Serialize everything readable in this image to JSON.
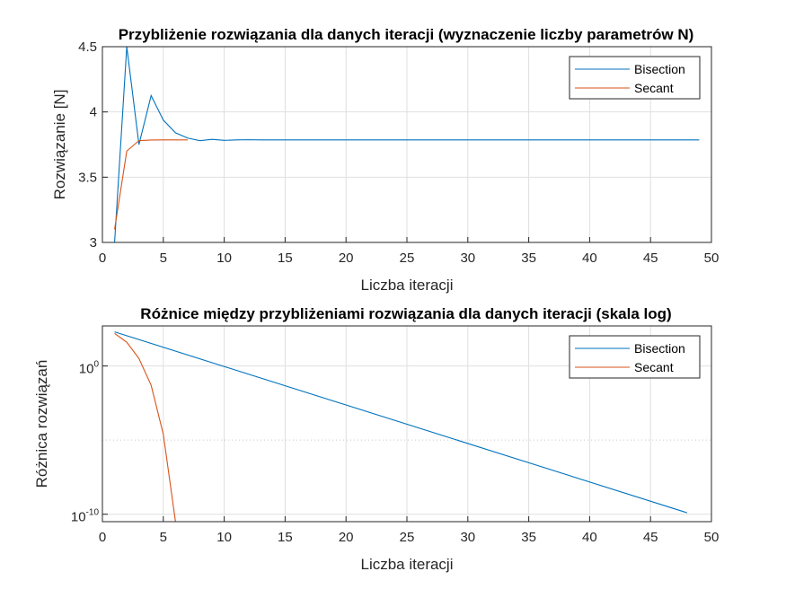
{
  "colors": {
    "bisection": "#0072BD",
    "secant": "#D95319",
    "grid": "#DFDFDF",
    "axis": "#262626"
  },
  "chart_data": [
    {
      "type": "line",
      "title": "Przybliżenie rozwiązania dla danych iteracji (wyznaczenie liczby parametrów N)",
      "xlabel": "Liczba iteracji",
      "ylabel": "Rozwiązanie [N]",
      "xlim": [
        0,
        50
      ],
      "ylim": [
        3,
        4.5
      ],
      "xticks": [
        "0",
        "5",
        "10",
        "15",
        "20",
        "25",
        "30",
        "35",
        "40",
        "45",
        "50"
      ],
      "yticks": [
        "3",
        "3.5",
        "4",
        "4.5"
      ],
      "grid": true,
      "legend_position": "top-right",
      "series": [
        {
          "name": "Bisection",
          "x": [
            1,
            2,
            3,
            4,
            5,
            6,
            7,
            8,
            9,
            10,
            11,
            12,
            13,
            14,
            15,
            16,
            17,
            18,
            19,
            20,
            21,
            22,
            23,
            24,
            25,
            26,
            27,
            28,
            29,
            30,
            31,
            32,
            33,
            34,
            35,
            36,
            37,
            38,
            39,
            40,
            41,
            42,
            43,
            44,
            45,
            46,
            47,
            48,
            49
          ],
          "y": [
            3.0,
            4.5,
            3.75,
            4.125,
            3.9375,
            3.84,
            3.8,
            3.78,
            3.79,
            3.782,
            3.786,
            3.787,
            3.786,
            3.7855,
            3.7855,
            3.7855,
            3.7855,
            3.7855,
            3.7855,
            3.7855,
            3.7855,
            3.7855,
            3.7855,
            3.7855,
            3.7855,
            3.7855,
            3.7855,
            3.7855,
            3.7855,
            3.7855,
            3.7855,
            3.7855,
            3.7855,
            3.7855,
            3.7855,
            3.7855,
            3.7855,
            3.7855,
            3.7855,
            3.7855,
            3.7855,
            3.7855,
            3.7855,
            3.7855,
            3.7855,
            3.7855,
            3.7855,
            3.7855,
            3.7855
          ]
        },
        {
          "name": "Secant",
          "x": [
            1,
            2,
            3,
            4,
            5,
            6,
            7
          ],
          "y": [
            3.1,
            3.7,
            3.78,
            3.785,
            3.7855,
            3.7855,
            3.7855
          ]
        }
      ]
    },
    {
      "type": "line",
      "title": "Różnice między przybliżeniami rozwiązania dla danych iteracji (skala log)",
      "xlabel": "Liczba iteracji",
      "ylabel": "Różnica rozwiązań",
      "xlim": [
        0,
        50
      ],
      "ylim_log10": [
        -10.5,
        2.7
      ],
      "yscale": "log",
      "xticks": [
        "0",
        "5",
        "10",
        "15",
        "20",
        "25",
        "30",
        "35",
        "40",
        "45",
        "50"
      ],
      "yticks": [
        {
          "base": "10",
          "exp": "0",
          "log10": 0
        },
        {
          "base": "10",
          "exp": "-10",
          "log10": -10
        }
      ],
      "grid": true,
      "legend_position": "top-right",
      "series": [
        {
          "name": "Bisection",
          "x": [
            1,
            48
          ],
          "log10_y": [
            2.3,
            -9.9
          ]
        },
        {
          "name": "Secant",
          "x": [
            1,
            2,
            3,
            4,
            5,
            6
          ],
          "log10_y": [
            2.2,
            1.6,
            0.5,
            -1.3,
            -4.6,
            -10.5
          ]
        }
      ]
    }
  ]
}
